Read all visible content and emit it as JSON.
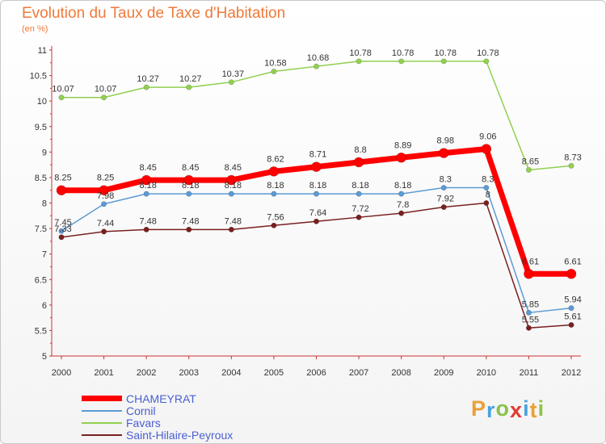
{
  "title": "Evolution du Taux de Taxe d'Habitation",
  "subtitle": "(en %)",
  "chart_data": {
    "type": "line",
    "title": "Evolution du Taux de Taxe d'Habitation",
    "ylabel": "(en %)",
    "xlabel": "",
    "x": [
      "2000",
      "2001",
      "2002",
      "2003",
      "2004",
      "2005",
      "2006",
      "2007",
      "2008",
      "2009",
      "2010",
      "2011",
      "2012"
    ],
    "ylim": [
      5,
      11
    ],
    "yticks": [
      "5",
      "5.5",
      "6",
      "6.5",
      "7",
      "7.5",
      "8",
      "8.5",
      "9",
      "9.5",
      "10",
      "10.5",
      "11"
    ],
    "grid": false,
    "legend": "bottom-left",
    "series": [
      {
        "name": "CHAMEYRAT",
        "color": "#ff0000",
        "values": [
          8.25,
          8.25,
          8.45,
          8.45,
          8.45,
          8.62,
          8.71,
          8.8,
          8.89,
          8.98,
          9.06,
          6.61,
          6.61
        ],
        "labels": [
          "8.25",
          "8.25",
          "8.45",
          "8.45",
          "8.45",
          "8.62",
          "8.71",
          "8.8",
          "8.89",
          "8.98",
          "9.06",
          "6.61",
          "6.61"
        ]
      },
      {
        "name": "Cornil",
        "color": "#5b9bd5",
        "values": [
          7.45,
          7.98,
          8.18,
          8.18,
          8.18,
          8.18,
          8.18,
          8.18,
          8.18,
          8.3,
          8.3,
          5.85,
          5.94
        ],
        "labels": [
          "7.45",
          "7.98",
          "8.18",
          "8.18",
          "8.18",
          "8.18",
          "8.18",
          "8.18",
          "8.18",
          "8.3",
          "8.3",
          "5.85",
          "5.94"
        ]
      },
      {
        "name": "Favars",
        "color": "#92d050",
        "values": [
          10.07,
          10.07,
          10.27,
          10.27,
          10.37,
          10.58,
          10.68,
          10.78,
          10.78,
          10.78,
          10.78,
          8.65,
          8.73
        ],
        "labels": [
          "10.07",
          "10.07",
          "10.27",
          "10.27",
          "10.37",
          "10.58",
          "10.68",
          "10.78",
          "10.78",
          "10.78",
          "10.78",
          "8.65",
          "8.73"
        ]
      },
      {
        "name": "Saint-Hilaire-Peyroux",
        "color": "#7a1f1f",
        "values": [
          7.33,
          7.44,
          7.48,
          7.48,
          7.48,
          7.56,
          7.64,
          7.72,
          7.8,
          7.92,
          8,
          5.55,
          5.61
        ],
        "labels": [
          "7.33",
          "7.44",
          "7.48",
          "7.48",
          "7.48",
          "7.56",
          "7.64",
          "7.72",
          "7.8",
          "7.92",
          "8",
          "5.55",
          "5.61"
        ]
      }
    ]
  },
  "logo": {
    "letters": [
      "P",
      "r",
      "o",
      "x",
      "i",
      "t",
      "i"
    ],
    "colors": [
      "#e8a13a",
      "#4aa3df",
      "#8bc34a",
      "#e53935",
      "#4aa3df",
      "#e8a13a",
      "#8bc34a"
    ]
  }
}
